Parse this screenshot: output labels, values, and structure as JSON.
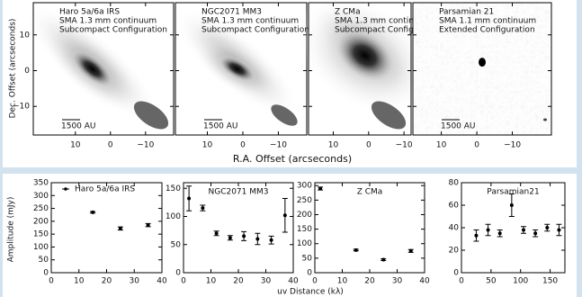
{
  "top_figure": {
    "xlabel": "R.A. Offset (arcseconds)",
    "ylabel": "Dec. Offset (arcseconds)"
  },
  "bottom_figure": {
    "xlabel": "uv Distance (kλ)",
    "ylabel": "Amplitude (mJy)"
  },
  "chart_data": [
    {
      "type": "image",
      "lines": [
        "Haro 5a/6a IRS",
        "SMA 1.3 mm continuum",
        "Subcompact Configuration"
      ],
      "scale_bar": "1500 AU",
      "xlim": [
        22,
        -18
      ],
      "ylim": [
        -18,
        19
      ],
      "xticks": [
        10,
        0,
        {
          "value": -10,
          "label": "−10"
        }
      ],
      "yticks": [
        {
          "value": -10,
          "label": "−10"
        },
        0,
        10
      ]
    },
    {
      "type": "image",
      "lines": [
        "NGC2071 MM3",
        "SMA 1.3 mm continuum",
        "Subcompact Configuration"
      ],
      "scale_bar": "1500 AU",
      "xlim": [
        19,
        -18
      ],
      "xticks": [
        10,
        0,
        {
          "value": -10,
          "label": "−10"
        }
      ]
    },
    {
      "type": "image",
      "lines": [
        "Z CMa",
        "SMA 1.3 mm continuum",
        "Subcompact Configuration"
      ],
      "xlim": [
        17,
        -12
      ],
      "xticks": [
        10,
        0,
        {
          "value": -10,
          "label": "−10"
        }
      ]
    },
    {
      "type": "image",
      "lines": [
        "Parsamian 21",
        "SMA 1.1 mm continuum",
        "Extended Configuration"
      ],
      "scale_bar": "1500 AU",
      "xlim": [
        18,
        -21
      ],
      "xticks": [
        10,
        0,
        {
          "value": -10,
          "label": "−10"
        }
      ]
    },
    {
      "type": "errorbar",
      "title": "Haro 5a/6a IRS",
      "xlim": [
        0,
        40
      ],
      "xticks": [
        0,
        10,
        20,
        30,
        40
      ],
      "ylim": [
        0,
        350
      ],
      "yticks": [
        0,
        50,
        100,
        150,
        200,
        250,
        300,
        350
      ],
      "x": [
        15,
        25,
        35
      ],
      "values": [
        235,
        172,
        185
      ],
      "errors": [
        3,
        6,
        6
      ]
    },
    {
      "type": "errorbar",
      "title": "NGC2071 MM3",
      "xlim": [
        0,
        40
      ],
      "xticks": [
        0,
        10,
        20,
        30,
        40
      ],
      "ylim": [
        0,
        160
      ],
      "yticks": [
        0,
        50,
        100,
        150
      ],
      "x": [
        2,
        7,
        12,
        17,
        22,
        27,
        32,
        37
      ],
      "values": [
        132,
        115,
        70,
        62,
        65,
        60,
        58,
        102
      ],
      "errors": [
        22,
        5,
        4,
        4,
        8,
        10,
        7,
        30
      ]
    },
    {
      "type": "errorbar",
      "title": "Z CMa",
      "xlim": [
        0,
        40
      ],
      "xticks": [
        0,
        10,
        20,
        30,
        40
      ],
      "ylim": [
        0,
        310
      ],
      "yticks": [
        0,
        50,
        100,
        150,
        200,
        250,
        300
      ],
      "x": [
        2,
        15,
        25,
        35
      ],
      "values": [
        290,
        78,
        45,
        75
      ],
      "errors": [
        5,
        3,
        3,
        5
      ]
    },
    {
      "type": "errorbar",
      "title": "Parsamian21",
      "xlim": [
        0,
        175
      ],
      "xticks": [
        0,
        50,
        100,
        150
      ],
      "ylim": [
        0,
        80
      ],
      "yticks": [
        0,
        20,
        40,
        60,
        80
      ],
      "x": [
        25,
        45,
        65,
        85,
        105,
        125,
        145,
        165
      ],
      "values": [
        33,
        38,
        35,
        60,
        38,
        35,
        40,
        38
      ],
      "errors": [
        5,
        5,
        3,
        10,
        3,
        3,
        3,
        5
      ]
    }
  ]
}
